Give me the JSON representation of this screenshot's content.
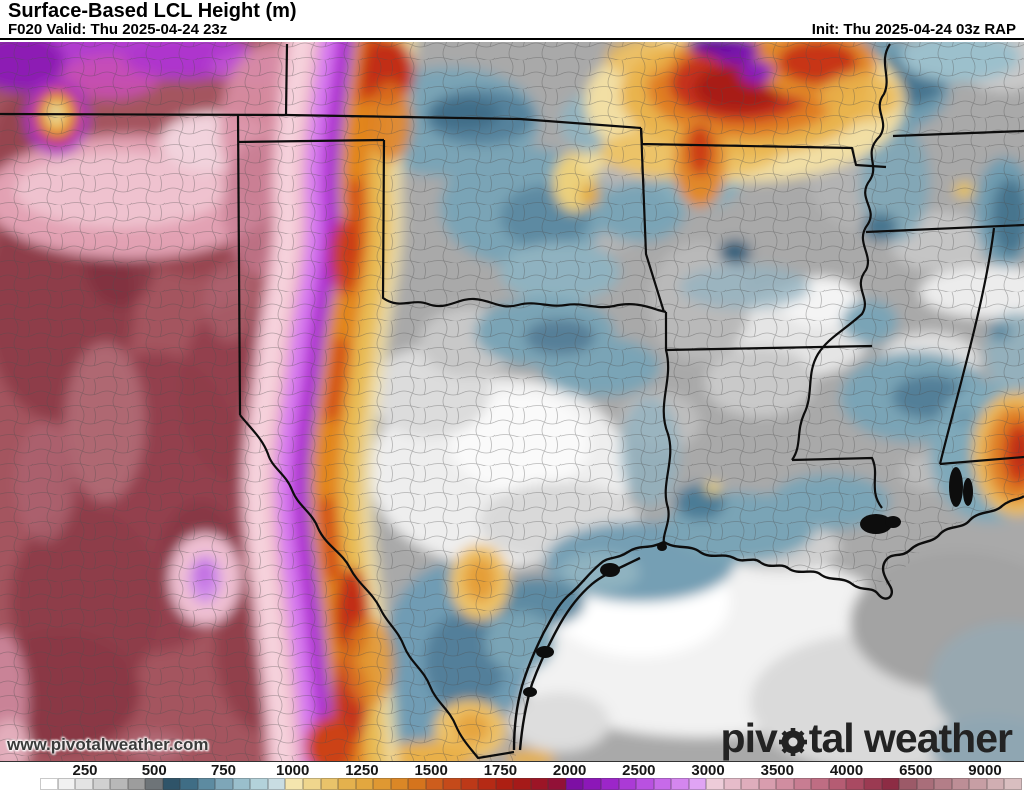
{
  "header": {
    "title": "Surface-Based LCL Height (m)",
    "valid": "F020 Valid: Thu 2025-04-24 23z",
    "init": "Init: Thu 2025-04-24 03z RAP"
  },
  "map": {
    "watermark": "www.pivotalweather.com",
    "logo_before": "piv",
    "logo_after": "tal weather",
    "model": "RAP",
    "field": "Surface-Based LCL Height",
    "unit": "m"
  },
  "colorbar": {
    "unit": "m",
    "ticks": [
      "250",
      "500",
      "750",
      "1000",
      "1250",
      "1500",
      "1750",
      "2000",
      "2500",
      "3000",
      "3500",
      "4000",
      "6500",
      "9000"
    ],
    "cells": [
      "#ffffff",
      "#f1f1f1",
      "#e3e3e3",
      "#d0d0d0",
      "#b8b8b8",
      "#9d9d9d",
      "#6e7478",
      "#2f5469",
      "#3f6d85",
      "#5d8ba1",
      "#7ea6b8",
      "#9abfcc",
      "#b3d2da",
      "#c9dde2",
      "#f4e5ae",
      "#efd68d",
      "#e9c36a",
      "#e4b14d",
      "#e2a73f",
      "#df9832",
      "#db8726",
      "#d5741d",
      "#cd5d1d",
      "#c54a1a",
      "#bd3918",
      "#b52a15",
      "#ad1f13",
      "#a51a19",
      "#9c1526",
      "#921137",
      "#7d0fa4",
      "#8c17b8",
      "#9c26c9",
      "#ab3ad6",
      "#b951e1",
      "#c76ae9",
      "#d486ef",
      "#e0a4f4",
      "#edccd9",
      "#e6bcca",
      "#dfadbc",
      "#d89dae",
      "#d08da0",
      "#c87d92",
      "#bf6d83",
      "#b55c73",
      "#a94a62",
      "#9b3a52",
      "#8d2c44",
      "#9c5a68",
      "#a96e7a",
      "#b37e88",
      "#bd8e96",
      "#c79ea4",
      "#d0aeb2",
      "#d9bec0"
    ]
  }
}
